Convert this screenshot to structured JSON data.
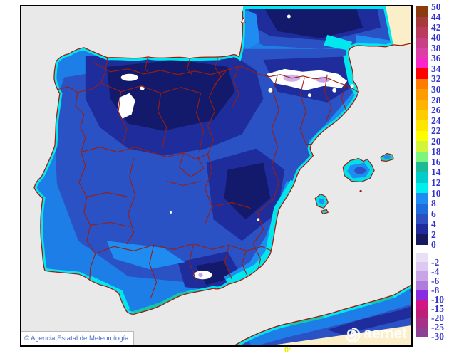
{
  "window": {
    "background_color": "#FFFFFF"
  },
  "map": {
    "sea_color": "#E9E9E9",
    "no_data_color": "#FAEFC9",
    "coast_border_color": "#9B1D0E",
    "snow_area_color": "#FFFFFF",
    "attribution": "© Agencia Estatal de Meteorología",
    "attribution_text_color": "#4A6BC9",
    "logo_text": "aemet",
    "meridian_label": "0°",
    "meridian_label_color": "#EDED00"
  },
  "legend": {
    "label_color": "#3232CC",
    "positive": {
      "boundary_labels": [
        "50",
        "44",
        "42",
        "40",
        "38",
        "36",
        "34",
        "32",
        "30",
        "28",
        "26",
        "24",
        "22",
        "20",
        "18",
        "16",
        "14",
        "12",
        "10",
        "8",
        "6",
        "4",
        "2",
        "0"
      ],
      "colors": [
        "#8C3A10",
        "#A53B3B",
        "#B93C5C",
        "#C93E87",
        "#DC40A5",
        "#F828C8",
        "#FE0000",
        "#FE7D00",
        "#FE9B00",
        "#FEB400",
        "#FECD00",
        "#FEE600",
        "#FEFE00",
        "#D2F53C",
        "#7DF57D",
        "#1EB996",
        "#00CCCC",
        "#00EEEE",
        "#1E8CF0",
        "#1D6EDC",
        "#2D50BE",
        "#1E2D9B",
        "#171A5F"
      ]
    },
    "negative": {
      "labels": [
        "-2",
        "-4",
        "-6",
        "-8",
        "-10",
        "-15",
        "-20",
        "-25",
        "-30"
      ],
      "colors": [
        "#E9E0F6",
        "#DCC8F0",
        "#C8A5E6",
        "#AF7BDC",
        "#8A2BE2",
        "#D21487",
        "#BE1E78",
        "#A53287",
        "#8C4193"
      ]
    }
  }
}
